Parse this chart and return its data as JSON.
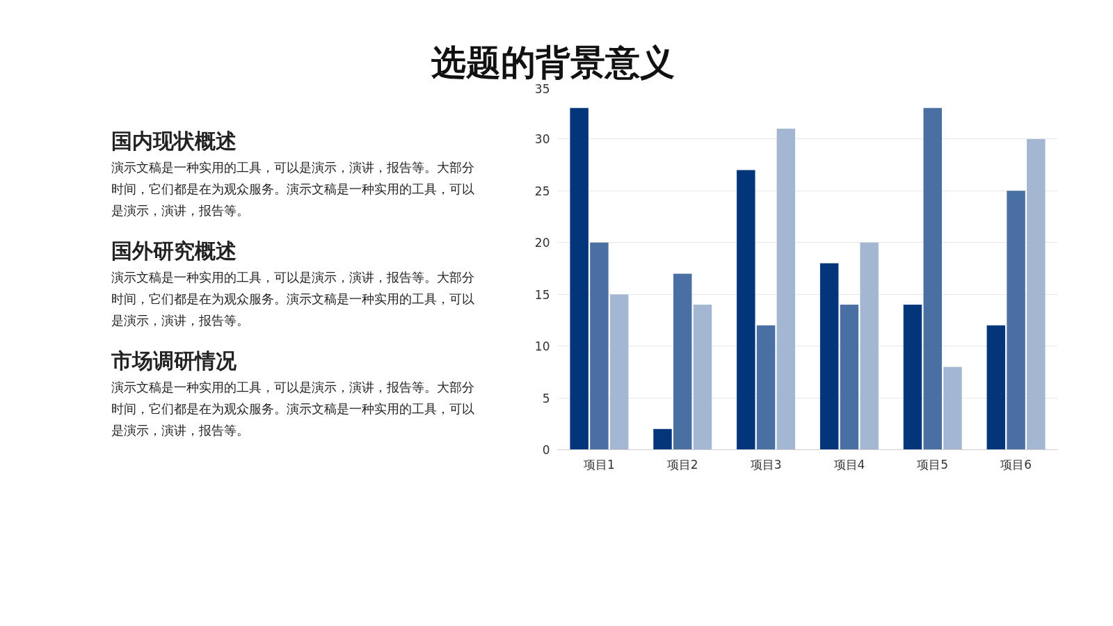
{
  "chart_data": {
    "type": "bar",
    "title": "选题的背景意义",
    "annotations": [
      "国内现状概述",
      "演示文稿是一种实用的工具，可以是演示，演讲，报告等。大部分时间，它们都是在为观众服务。演示文稿是一种实用的工具，可以是演示，演讲，报告等。",
      "国外研究概述",
      "演示文稿是一种实用的工具，可以是演示，演讲，报告等。大部分时间，它们都是在为观众服务。演示文稿是一种实用的工具，可以是演示，演讲，报告等。",
      "市场调研情况",
      "演示文稿是一种实用的工具，可以是演示，演讲，报告等。大部分时间，它们都是在为观众服务。演示文稿是一种实用的工具，可以是演示，演讲，报告等。"
    ],
    "categories": [
      "项目1",
      "项目2",
      "项目3",
      "项目4",
      "项目5",
      "项目6"
    ],
    "series": [
      {
        "color": "#03357a",
        "values": [
          33,
          2,
          27,
          18,
          14,
          12
        ]
      },
      {
        "color": "#4a70a3",
        "values": [
          20,
          17,
          12,
          14,
          33,
          25
        ]
      },
      {
        "color": "#a3b7d3",
        "values": [
          15,
          14,
          31,
          20,
          8,
          30
        ]
      }
    ],
    "ylim": [
      0,
      35
    ],
    "yticks": [
      0,
      5,
      10,
      15,
      20,
      25,
      30,
      35
    ],
    "grid": "y"
  }
}
